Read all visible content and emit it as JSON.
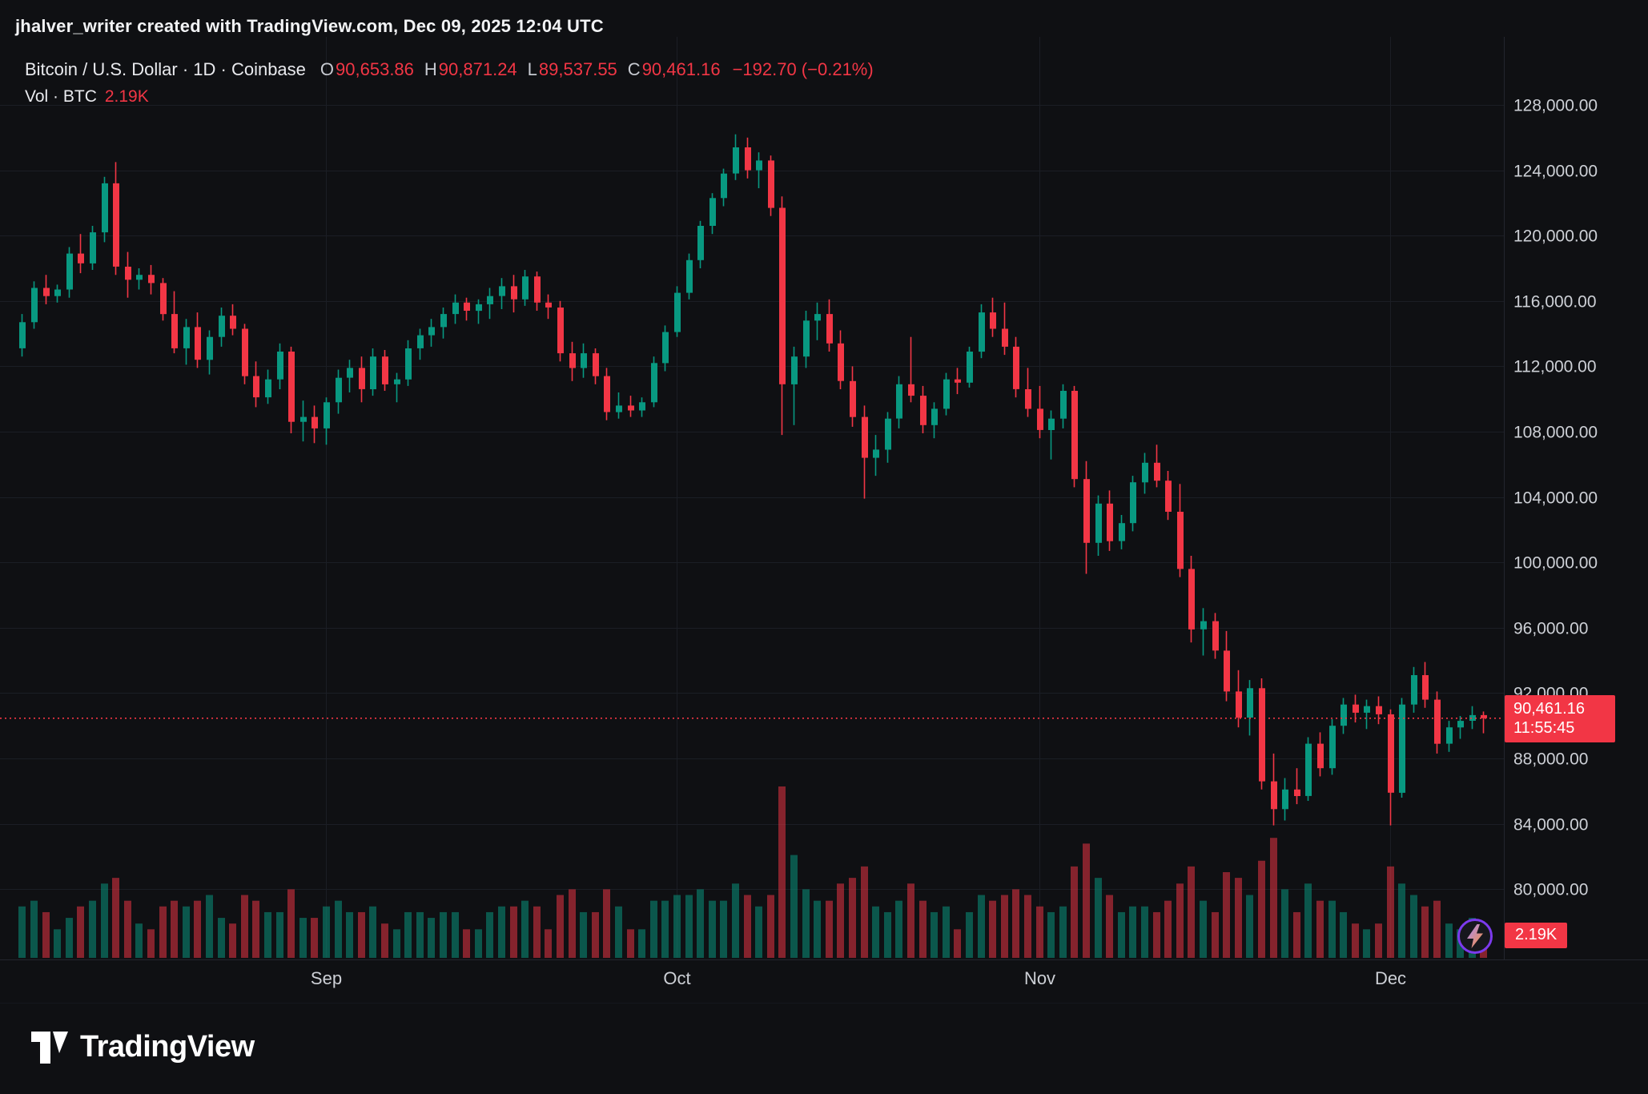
{
  "attribution": "jhalver_writer created with TradingView.com, Dec 09, 2025 12:04 UTC",
  "legend": {
    "title": "Bitcoin / U.S. Dollar · 1D · Coinbase",
    "o_label": "O",
    "o_value": "90,653.86",
    "h_label": "H",
    "h_value": "90,871.24",
    "l_label": "L",
    "l_value": "89,537.55",
    "c_label": "C",
    "c_value": "90,461.16",
    "change": "−192.70 (−0.21%)",
    "vol_label": "Vol · BTC",
    "vol_value": "2.19K"
  },
  "price_badge": {
    "price": "90,461.16",
    "countdown": "11:55:45"
  },
  "volume_badge": "2.19K",
  "logo_text": "TradingView",
  "price_axis": {
    "labels": [
      "128,000.00",
      "124,000.00",
      "120,000.00",
      "116,000.00",
      "112,000.00",
      "108,000.00",
      "104,000.00",
      "100,000.00",
      "96,000.00",
      "92,000.00",
      "88,000.00",
      "84,000.00",
      "80,000.00"
    ],
    "values": [
      128000,
      124000,
      120000,
      116000,
      112000,
      108000,
      104000,
      100000,
      96000,
      92000,
      88000,
      84000,
      80000
    ]
  },
  "colors": {
    "bg": "#0f1013",
    "up": "#089981",
    "down": "#f23645",
    "vol_up": "rgba(8,153,129,0.52)",
    "vol_down": "rgba(242,54,69,0.52)",
    "grid": "#1b1e25",
    "separator": "#23262e",
    "axis_text": "#cdd0d6",
    "badge_bg": "#f23645",
    "accent_purple": "#7c3aed",
    "bolt_orange": "#fb923c"
  },
  "chart_data": {
    "type": "candlestick",
    "title": "Bitcoin / U.S. Dollar",
    "interval": "1D",
    "exchange": "Coinbase",
    "last": {
      "open": 90653.86,
      "high": 90871.24,
      "low": 89537.55,
      "close": 90461.16,
      "change": -192.7,
      "change_pct": -0.21,
      "volume_k_btc": 2.19
    },
    "current_price": 90461.16,
    "ylim": [
      80000,
      128000
    ],
    "grid": true,
    "month_ticks": [
      {
        "label": "Sep",
        "index": 26
      },
      {
        "label": "Oct",
        "index": 56
      },
      {
        "label": "Nov",
        "index": 87
      },
      {
        "label": "Dec",
        "index": 117
      }
    ],
    "volume_max_k": 30,
    "candles_format": [
      "open",
      "high",
      "low",
      "close",
      "volume_k_btc"
    ],
    "candles": [
      [
        113100,
        115200,
        112600,
        114700,
        9
      ],
      [
        114700,
        117200,
        114300,
        116800,
        10
      ],
      [
        116800,
        117600,
        115800,
        116300,
        8
      ],
      [
        116300,
        117000,
        115900,
        116700,
        5
      ],
      [
        116700,
        119300,
        116200,
        118900,
        7
      ],
      [
        118900,
        120100,
        117700,
        118300,
        9
      ],
      [
        118300,
        120600,
        117900,
        120200,
        10
      ],
      [
        120200,
        123600,
        119600,
        123200,
        13
      ],
      [
        123200,
        124500,
        117600,
        118100,
        14
      ],
      [
        118100,
        119000,
        116200,
        117300,
        10
      ],
      [
        117300,
        118000,
        116700,
        117600,
        6
      ],
      [
        117600,
        118200,
        116400,
        117100,
        5
      ],
      [
        117100,
        117400,
        114800,
        115200,
        9
      ],
      [
        115200,
        116600,
        112800,
        113100,
        10
      ],
      [
        113100,
        114900,
        112100,
        114400,
        9
      ],
      [
        114400,
        115300,
        111900,
        112400,
        10
      ],
      [
        112400,
        114200,
        111500,
        113800,
        11
      ],
      [
        113800,
        115600,
        113200,
        115100,
        7
      ],
      [
        115100,
        115800,
        113900,
        114300,
        6
      ],
      [
        114300,
        114600,
        110900,
        111400,
        11
      ],
      [
        111400,
        112300,
        109500,
        110100,
        10
      ],
      [
        110100,
        111800,
        109700,
        111200,
        8
      ],
      [
        111200,
        113400,
        110600,
        112900,
        8
      ],
      [
        112900,
        113200,
        107900,
        108600,
        12
      ],
      [
        108600,
        109900,
        107400,
        108900,
        7
      ],
      [
        108900,
        109600,
        107300,
        108200,
        7
      ],
      [
        108200,
        110100,
        107200,
        109800,
        9
      ],
      [
        109800,
        111800,
        109100,
        111300,
        10
      ],
      [
        111300,
        112400,
        110400,
        111900,
        8
      ],
      [
        111900,
        112600,
        109800,
        110600,
        8
      ],
      [
        110600,
        113100,
        110200,
        112600,
        9
      ],
      [
        112600,
        113000,
        110500,
        110900,
        6
      ],
      [
        110900,
        111600,
        109800,
        111200,
        5
      ],
      [
        111200,
        113600,
        110800,
        113100,
        8
      ],
      [
        113100,
        114300,
        112400,
        113900,
        8
      ],
      [
        113900,
        114900,
        113200,
        114400,
        7
      ],
      [
        114400,
        115600,
        113700,
        115200,
        8
      ],
      [
        115200,
        116400,
        114600,
        115900,
        8
      ],
      [
        115900,
        116200,
        114800,
        115400,
        5
      ],
      [
        115400,
        116100,
        114600,
        115800,
        5
      ],
      [
        115800,
        116800,
        114900,
        116300,
        8
      ],
      [
        116300,
        117400,
        115500,
        116900,
        9
      ],
      [
        116900,
        117600,
        115300,
        116100,
        9
      ],
      [
        116100,
        117900,
        115700,
        117500,
        10
      ],
      [
        117500,
        117800,
        115400,
        115900,
        9
      ],
      [
        115900,
        116400,
        114900,
        115600,
        5
      ],
      [
        115600,
        116000,
        112300,
        112800,
        11
      ],
      [
        112800,
        113500,
        111100,
        111900,
        12
      ],
      [
        111900,
        113400,
        111300,
        112800,
        8
      ],
      [
        112800,
        113100,
        110900,
        111400,
        8
      ],
      [
        111400,
        111900,
        108700,
        109200,
        12
      ],
      [
        109200,
        110400,
        108800,
        109600,
        9
      ],
      [
        109600,
        110200,
        108900,
        109300,
        5
      ],
      [
        109300,
        110100,
        108900,
        109800,
        5
      ],
      [
        109800,
        112600,
        109500,
        112200,
        10
      ],
      [
        112200,
        114500,
        111700,
        114100,
        10
      ],
      [
        114100,
        116900,
        113800,
        116500,
        11
      ],
      [
        116500,
        118900,
        116100,
        118500,
        11
      ],
      [
        118500,
        120900,
        118000,
        120600,
        12
      ],
      [
        120600,
        122600,
        120100,
        122300,
        10
      ],
      [
        122300,
        124100,
        121800,
        123800,
        10
      ],
      [
        123800,
        126200,
        123400,
        125400,
        13
      ],
      [
        125400,
        126000,
        123500,
        124000,
        11
      ],
      [
        124000,
        125100,
        122900,
        124600,
        9
      ],
      [
        124600,
        124900,
        121200,
        121700,
        11
      ],
      [
        121700,
        122400,
        107800,
        110900,
        30
      ],
      [
        110900,
        113200,
        108400,
        112600,
        18
      ],
      [
        112600,
        115400,
        111900,
        114800,
        12
      ],
      [
        114800,
        115900,
        113600,
        115200,
        10
      ],
      [
        115200,
        116100,
        112900,
        113400,
        10
      ],
      [
        113400,
        114200,
        110600,
        111100,
        13
      ],
      [
        111100,
        112000,
        108300,
        108900,
        14
      ],
      [
        108900,
        109600,
        103900,
        106400,
        16
      ],
      [
        106400,
        107800,
        105300,
        106900,
        9
      ],
      [
        106900,
        109200,
        106100,
        108800,
        8
      ],
      [
        108800,
        111400,
        108200,
        110900,
        10
      ],
      [
        110900,
        113800,
        109800,
        110200,
        13
      ],
      [
        110200,
        110800,
        107900,
        108400,
        10
      ],
      [
        108400,
        109800,
        107600,
        109400,
        8
      ],
      [
        109400,
        111600,
        109000,
        111200,
        9
      ],
      [
        111200,
        111900,
        110300,
        111000,
        5
      ],
      [
        111000,
        113200,
        110700,
        112900,
        8
      ],
      [
        112900,
        115800,
        112500,
        115300,
        11
      ],
      [
        115300,
        116200,
        113800,
        114300,
        10
      ],
      [
        114300,
        115900,
        112700,
        113200,
        11
      ],
      [
        113200,
        113800,
        110100,
        110600,
        12
      ],
      [
        110600,
        111900,
        108900,
        109400,
        11
      ],
      [
        109400,
        110800,
        107600,
        108100,
        9
      ],
      [
        108100,
        109300,
        106300,
        108800,
        8
      ],
      [
        108800,
        110900,
        108200,
        110500,
        9
      ],
      [
        110500,
        110800,
        104600,
        105100,
        16
      ],
      [
        105100,
        106200,
        99300,
        101200,
        20
      ],
      [
        101200,
        104100,
        100400,
        103600,
        14
      ],
      [
        103600,
        104400,
        100700,
        101300,
        11
      ],
      [
        101300,
        102900,
        100800,
        102400,
        8
      ],
      [
        102400,
        105300,
        101900,
        104900,
        9
      ],
      [
        104900,
        106700,
        104200,
        106100,
        9
      ],
      [
        106100,
        107200,
        104600,
        105000,
        8
      ],
      [
        105000,
        105600,
        102600,
        103100,
        10
      ],
      [
        103100,
        104800,
        99100,
        99600,
        13
      ],
      [
        99600,
        100400,
        95100,
        95900,
        16
      ],
      [
        95900,
        97200,
        94300,
        96400,
        10
      ],
      [
        96400,
        96900,
        94100,
        94600,
        8
      ],
      [
        94600,
        95800,
        91500,
        92100,
        15
      ],
      [
        92100,
        93400,
        89900,
        90500,
        14
      ],
      [
        90500,
        92800,
        89400,
        92300,
        11
      ],
      [
        92300,
        92900,
        86100,
        86600,
        17
      ],
      [
        86600,
        88300,
        83900,
        84900,
        21
      ],
      [
        84900,
        86800,
        84200,
        86100,
        12
      ],
      [
        86100,
        87400,
        85200,
        85700,
        8
      ],
      [
        85700,
        89300,
        85400,
        88900,
        13
      ],
      [
        88900,
        89600,
        86900,
        87400,
        10
      ],
      [
        87400,
        90400,
        87000,
        90000,
        10
      ],
      [
        90000,
        91700,
        89500,
        91300,
        8
      ],
      [
        91300,
        91900,
        90200,
        90800,
        6
      ],
      [
        90800,
        91600,
        89800,
        91200,
        5
      ],
      [
        91200,
        91800,
        90100,
        90700,
        6
      ],
      [
        90700,
        91000,
        83900,
        85900,
        16
      ],
      [
        85900,
        91700,
        85600,
        91300,
        13
      ],
      [
        91300,
        93600,
        90800,
        93100,
        11
      ],
      [
        93100,
        93900,
        91100,
        91600,
        9
      ],
      [
        91600,
        92100,
        88300,
        88900,
        10
      ],
      [
        88900,
        90300,
        88400,
        89900,
        6
      ],
      [
        89900,
        90600,
        89200,
        90300,
        5
      ],
      [
        90300,
        91200,
        89800,
        90650,
        7
      ],
      [
        90653.86,
        90871.24,
        89537.55,
        90461.16,
        2.19
      ]
    ]
  }
}
